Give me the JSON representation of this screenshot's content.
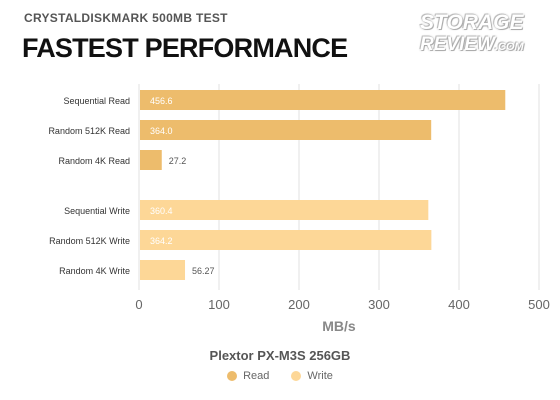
{
  "header": {
    "subtitle": "CRYSTALDISKMARK 500MB TEST",
    "title": "FASTEST PERFORMANCE",
    "logo_line1": "STORAGE",
    "logo_line2": "REVIEW",
    "logo_suffix": ".COM"
  },
  "colors": {
    "read": "#edbc6c",
    "write": "#fdd797",
    "grid": "#e0e0e0",
    "axis_text": "#666666"
  },
  "chart_data": {
    "type": "bar",
    "orientation": "horizontal",
    "xlabel": "MB/s",
    "xlim": [
      0,
      500
    ],
    "xticks": [
      0,
      100,
      200,
      300,
      400,
      500
    ],
    "grid": true,
    "legend_title": "Plextor PX-M3S 256GB",
    "legend_position": "bottom",
    "categories": [
      "Sequential Read",
      "Random 512K Read",
      "Random 4K Read",
      "Sequential Write",
      "Random 512K Write",
      "Random 4K Write"
    ],
    "bars": [
      {
        "category": "Sequential Read",
        "value": 456.6,
        "label": "456.6",
        "series": "read"
      },
      {
        "category": "Random 512K Read",
        "value": 364.0,
        "label": "364.0",
        "series": "read"
      },
      {
        "category": "Random 4K Read",
        "value": 27.2,
        "label": "27.2",
        "series": "read"
      },
      {
        "category": "Sequential Write",
        "value": 360.4,
        "label": "360.4",
        "series": "write"
      },
      {
        "category": "Random 512K Write",
        "value": 364.2,
        "label": "364.2",
        "series": "write"
      },
      {
        "category": "Random 4K Write",
        "value": 56.27,
        "label": "56.27",
        "series": "write"
      }
    ],
    "series": [
      {
        "key": "read",
        "name": "Read"
      },
      {
        "key": "write",
        "name": "Write"
      }
    ]
  }
}
